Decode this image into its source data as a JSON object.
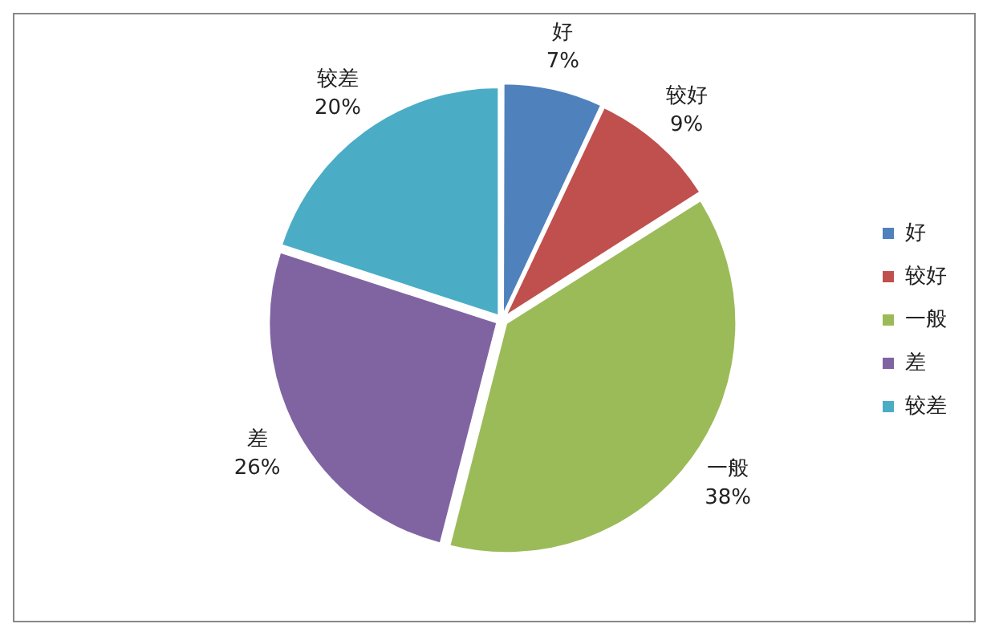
{
  "chart_data": {
    "type": "pie",
    "categories": [
      "好",
      "较好",
      "一般",
      "差",
      "较差"
    ],
    "values": [
      7,
      9,
      38,
      26,
      20
    ],
    "value_labels": [
      "7%",
      "9%",
      "38%",
      "26%",
      "20%"
    ],
    "colors": [
      "#4f81bd",
      "#c0504d",
      "#9bbb59",
      "#8064a2",
      "#4bacc6"
    ],
    "legend": "right"
  }
}
